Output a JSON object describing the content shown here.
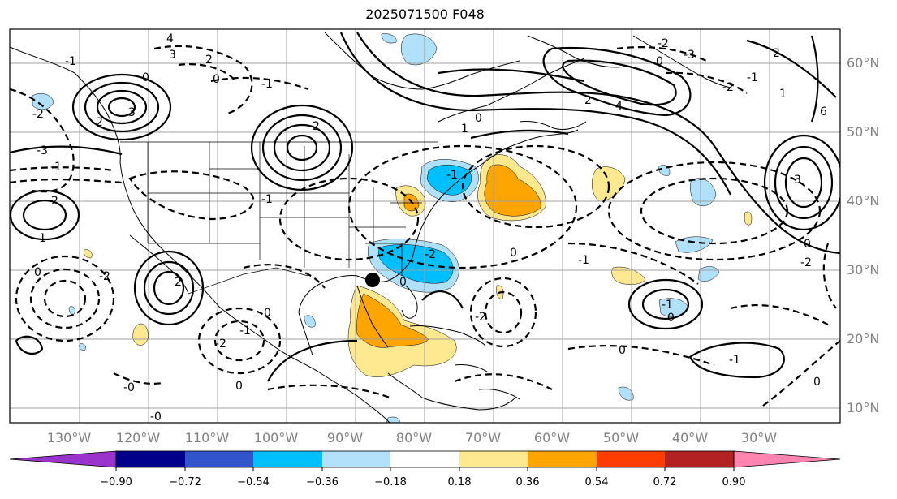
{
  "title": "2025071500 F048",
  "map": {
    "lon_labels": [
      "130°W",
      "120°W",
      "110°W",
      "100°W",
      "90°W",
      "80°W",
      "70°W",
      "60°W",
      "50°W",
      "40°W",
      "30°W"
    ],
    "lat_labels": [
      "60°N",
      "50°N",
      "40°N",
      "30°N",
      "20°N",
      "10°N"
    ],
    "contour_labels": [
      "4",
      "3",
      "2",
      "0",
      "-1",
      "0",
      "-1",
      "2",
      "3",
      "-2",
      "-3",
      "-1",
      "-2",
      "0",
      "1",
      "2",
      "-1",
      "-2",
      "0",
      "0",
      "2",
      "-2",
      "-1",
      "0",
      "1",
      "-1",
      "-2",
      "2",
      "0",
      "-2",
      "-0",
      "-0",
      "0",
      "0",
      "-1",
      "0",
      "-1",
      "-2",
      "-1",
      "0",
      "-2",
      "2",
      "-1",
      "1",
      "3",
      "4",
      "6",
      "0",
      "0",
      "-3",
      "-2"
    ],
    "marker": "black-dot"
  },
  "colorbar": {
    "colors": [
      "#9933cc",
      "#00008b",
      "#3355cc",
      "#00bfff",
      "#b0e0fa",
      "#ffffff",
      "#ffe990",
      "#ffa500",
      "#ff3d00",
      "#b22222",
      "#ff85b0"
    ],
    "tick_labels": [
      "−0.90",
      "−0.72",
      "−0.54",
      "−0.36",
      "−0.18",
      "0.18",
      "0.36",
      "0.54",
      "0.72",
      "0.90"
    ]
  }
}
